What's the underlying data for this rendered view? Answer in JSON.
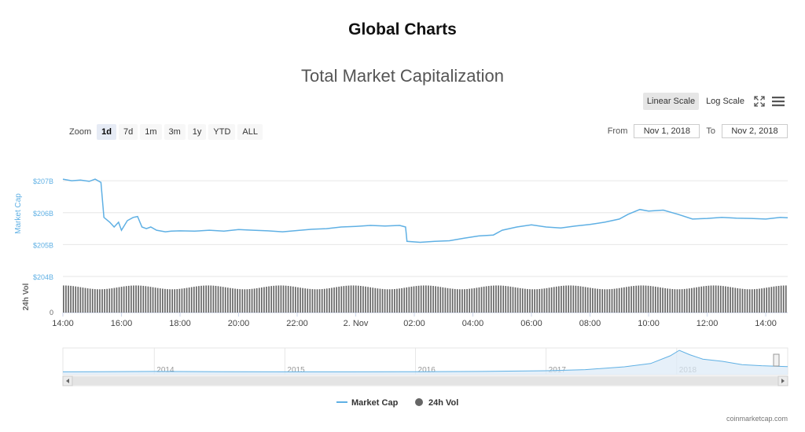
{
  "page": {
    "title": "Global Charts"
  },
  "chart_header": {
    "title": "Total Market Capitalization"
  },
  "toolbar": {
    "linear_label": "Linear Scale",
    "log_label": "Log Scale",
    "active_scale": "linear",
    "fullscreen_icon": "expand-icon",
    "menu_icon": "hamburger-menu-icon"
  },
  "zoom": {
    "label": "Zoom",
    "buttons": [
      "1d",
      "7d",
      "1m",
      "3m",
      "1y",
      "YTD",
      "ALL"
    ],
    "active": "1d"
  },
  "range": {
    "from_label": "From",
    "from_value": "Nov 1, 2018",
    "to_label": "To",
    "to_value": "Nov 2, 2018"
  },
  "legend": {
    "market_cap": "Market Cap",
    "volume": "24h Vol"
  },
  "credit": "coinmarketcap.com",
  "colors": {
    "market_cap": "#5fb0e4",
    "volume": "#666666",
    "grid": "#e6e6e6",
    "navigator_fill": "#dbeaf7"
  },
  "chart_data": {
    "type": "line",
    "title": "Total Market Capitalization",
    "x_range": [
      "2018-11-01T14:00",
      "2018-11-02T14:30"
    ],
    "x_ticks": [
      "14:00",
      "16:00",
      "18:00",
      "20:00",
      "22:00",
      "2. Nov",
      "02:00",
      "04:00",
      "06:00",
      "08:00",
      "10:00",
      "12:00",
      "14:00"
    ],
    "main": {
      "ylabel": "Market Cap",
      "y_ticks": [
        "$207B",
        "$206B",
        "$205B",
        "$204B"
      ],
      "y_tick_values": [
        207,
        206,
        205,
        204
      ],
      "ylim": [
        204,
        207.2
      ],
      "unit": "B USD",
      "series": [
        {
          "name": "Market Cap",
          "points": [
            [
              0,
              207.05
            ],
            [
              0.3,
              207.0
            ],
            [
              0.6,
              207.02
            ],
            [
              0.9,
              206.98
            ],
            [
              1.1,
              207.05
            ],
            [
              1.3,
              206.95
            ],
            [
              1.4,
              205.85
            ],
            [
              1.6,
              205.7
            ],
            [
              1.75,
              205.55
            ],
            [
              1.9,
              205.7
            ],
            [
              2.0,
              205.45
            ],
            [
              2.2,
              205.75
            ],
            [
              2.4,
              205.85
            ],
            [
              2.55,
              205.88
            ],
            [
              2.7,
              205.55
            ],
            [
              2.85,
              205.5
            ],
            [
              3.0,
              205.55
            ],
            [
              3.2,
              205.45
            ],
            [
              3.5,
              205.4
            ],
            [
              3.7,
              205.42
            ],
            [
              4.0,
              205.43
            ],
            [
              4.5,
              205.42
            ],
            [
              5.0,
              205.45
            ],
            [
              5.5,
              205.42
            ],
            [
              6.0,
              205.47
            ],
            [
              6.5,
              205.45
            ],
            [
              7.0,
              205.43
            ],
            [
              7.5,
              205.4
            ],
            [
              8.0,
              205.44
            ],
            [
              8.5,
              205.48
            ],
            [
              9.0,
              205.5
            ],
            [
              9.5,
              205.55
            ],
            [
              10.0,
              205.57
            ],
            [
              10.5,
              205.6
            ],
            [
              11.0,
              205.58
            ],
            [
              11.5,
              205.6
            ],
            [
              11.7,
              205.55
            ],
            [
              11.75,
              205.1
            ],
            [
              12.2,
              205.07
            ],
            [
              12.7,
              205.1
            ],
            [
              13.2,
              205.12
            ],
            [
              13.7,
              205.2
            ],
            [
              14.2,
              205.27
            ],
            [
              14.7,
              205.3
            ],
            [
              15.0,
              205.45
            ],
            [
              15.5,
              205.55
            ],
            [
              16.0,
              205.62
            ],
            [
              16.5,
              205.55
            ],
            [
              17.0,
              205.52
            ],
            [
              17.5,
              205.58
            ],
            [
              18.0,
              205.63
            ],
            [
              18.5,
              205.7
            ],
            [
              19.0,
              205.8
            ],
            [
              19.3,
              205.95
            ],
            [
              19.7,
              206.1
            ],
            [
              20.0,
              206.05
            ],
            [
              20.5,
              206.08
            ],
            [
              21.0,
              205.95
            ],
            [
              21.5,
              205.8
            ],
            [
              22.0,
              205.82
            ],
            [
              22.5,
              205.85
            ],
            [
              23.0,
              205.83
            ],
            [
              23.5,
              205.82
            ],
            [
              24.0,
              205.8
            ],
            [
              24.5,
              205.85
            ],
            [
              24.75,
              205.84
            ]
          ]
        }
      ]
    },
    "volume": {
      "ylabel": "24h Vol",
      "y_ticks": [
        "0"
      ],
      "series": [
        {
          "name": "24h Vol",
          "relative_level": 0.96,
          "bar_count": 300
        }
      ]
    },
    "navigator": {
      "x_ticks": [
        "2014",
        "2015",
        "2016",
        "2017",
        "2018"
      ],
      "x_tick_positions": [
        2014,
        2015,
        2016,
        2017,
        2018
      ],
      "xlim": [
        2013.3,
        2018.85
      ],
      "points": [
        [
          2013.3,
          0.02
        ],
        [
          2014,
          0.04
        ],
        [
          2014.5,
          0.03
        ],
        [
          2015,
          0.02
        ],
        [
          2015.5,
          0.02
        ],
        [
          2016,
          0.03
        ],
        [
          2016.5,
          0.04
        ],
        [
          2017,
          0.07
        ],
        [
          2017.3,
          0.12
        ],
        [
          2017.6,
          0.25
        ],
        [
          2017.8,
          0.4
        ],
        [
          2017.95,
          0.75
        ],
        [
          2018.02,
          1.0
        ],
        [
          2018.1,
          0.8
        ],
        [
          2018.2,
          0.6
        ],
        [
          2018.35,
          0.5
        ],
        [
          2018.5,
          0.35
        ],
        [
          2018.65,
          0.3
        ],
        [
          2018.85,
          0.26
        ]
      ]
    }
  }
}
